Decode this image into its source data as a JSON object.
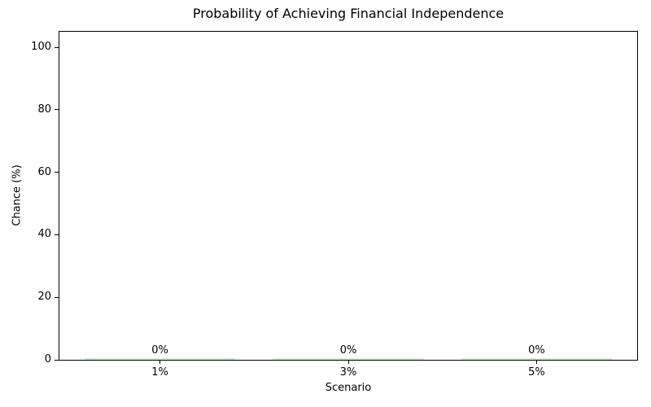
{
  "chart_data": {
    "type": "bar",
    "title": "Probability of Achieving Financial Independence",
    "xlabel": "Scenario",
    "ylabel": "Chance (%)",
    "categories": [
      "1%",
      "3%",
      "5%"
    ],
    "values": [
      0,
      0,
      0
    ],
    "bar_value_labels": [
      "0%",
      "0%",
      "0%"
    ],
    "ylim": [
      0,
      105
    ],
    "yticks": [
      0,
      20,
      40,
      60,
      80,
      100
    ],
    "bar_color": "#d9ecd9",
    "axis_color": "#000000",
    "text_color": "#000000",
    "grid": false,
    "legend": null
  }
}
